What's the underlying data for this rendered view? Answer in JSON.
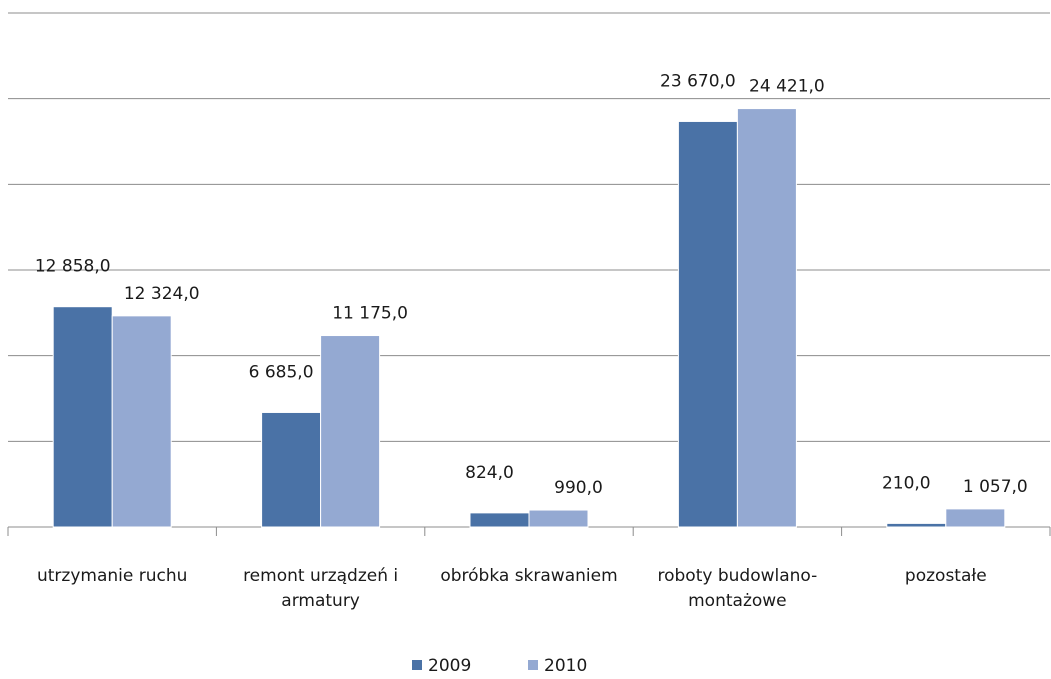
{
  "chart_data": {
    "type": "bar",
    "categories": [
      "utrzymanie ruchu",
      "remont urządzeń i armatury",
      "obróbka skrawaniem",
      "roboty budowlano-montażowe",
      "pozostałe"
    ],
    "series": [
      {
        "name": "2009",
        "color": "#4a72a6",
        "values": [
          12858,
          6685,
          824,
          23670,
          210
        ],
        "value_labels": [
          "12 858,0",
          "6 685,0",
          "824,0",
          "23 670,0",
          "210,0"
        ]
      },
      {
        "name": "2010",
        "color": "#94a9d2",
        "values": [
          12324,
          11175,
          990,
          24421,
          1057
        ],
        "value_labels": [
          "12 324,0",
          "11 175,0",
          "990,0",
          "24 421,0",
          "1 057,0"
        ]
      }
    ],
    "ylim": [
      0,
      30000
    ],
    "yticks": [
      0,
      5000,
      10000,
      15000,
      20000,
      25000,
      30000
    ],
    "grid": true,
    "legend": "bottom"
  }
}
